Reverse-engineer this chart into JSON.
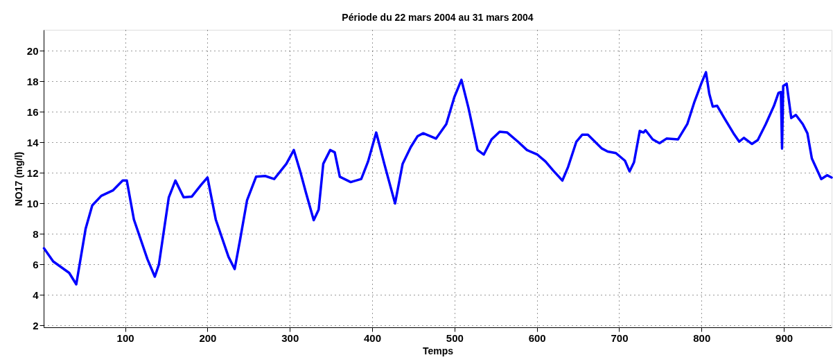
{
  "chart_data": {
    "type": "line",
    "title": "Période du 22 mars 2004 au 31 mars 2004",
    "xlabel": "Temps",
    "ylabel": "NO17 (mg/l)",
    "xlim": [
      1,
      958
    ],
    "ylim": [
      1.88,
      21.38
    ],
    "xticks": [
      100,
      200,
      300,
      400,
      500,
      600,
      700,
      800,
      900
    ],
    "yticks": [
      2,
      4,
      6,
      8,
      10,
      12,
      14,
      16,
      18,
      20
    ],
    "grid": true,
    "marker": "none",
    "line_style": "solid",
    "series": [
      {
        "color": "#0000ff",
        "x": [
          1.4,
          12.6,
          32,
          40.6,
          52,
          60,
          71,
          85,
          97,
          102,
          110.6,
          127,
          136,
          141,
          153,
          161,
          171,
          181,
          192,
          200,
          210,
          225.5,
          233,
          239.5,
          248,
          259,
          270,
          281,
          295.8,
          304.8,
          312.6,
          319.6,
          329,
          335,
          340.6,
          349,
          354.5,
          360.7,
          374,
          386.7,
          395,
          404.9,
          414.7,
          427.8,
          437,
          446.9,
          455,
          462,
          477.6,
          490,
          500,
          508.4,
          517,
          528,
          535.5,
          545,
          554.8,
          564,
          577,
          588,
          600.7,
          610.5,
          620,
          631,
          638,
          648,
          655,
          662,
          679,
          686,
          696,
          707,
          712.6,
          718,
          725,
          729.5,
          732,
          740.7,
          749,
          757.5,
          771.5,
          782.7,
          791,
          800,
          805.4,
          809.4,
          813.6,
          819,
          827.6,
          838.8,
          845.8,
          851.4,
          861.3,
          868.3,
          878,
          888,
          893.5,
          896.4,
          897.8,
          899.2,
          903.4,
          909,
          914.6,
          923,
          928.6,
          934,
          945.4,
          952.5,
          958
        ],
        "values": [
          7.06,
          6.2,
          5.45,
          4.7,
          8.35,
          9.87,
          10.5,
          10.85,
          11.5,
          11.5,
          8.95,
          6.35,
          5.2,
          6.0,
          10.4,
          11.5,
          10.4,
          10.45,
          11.2,
          11.7,
          8.95,
          6.5,
          5.7,
          7.6,
          10.2,
          11.75,
          11.8,
          11.6,
          12.6,
          13.5,
          12.1,
          10.7,
          8.9,
          9.6,
          12.6,
          13.5,
          13.35,
          11.75,
          11.4,
          11.6,
          12.75,
          14.65,
          12.6,
          10.0,
          12.6,
          13.7,
          14.4,
          14.6,
          14.25,
          15.2,
          17.0,
          18.1,
          16.25,
          13.5,
          13.2,
          14.2,
          14.7,
          14.65,
          14.05,
          13.5,
          13.2,
          12.75,
          12.15,
          11.5,
          12.4,
          14.05,
          14.5,
          14.5,
          13.6,
          13.4,
          13.3,
          12.8,
          12.1,
          12.7,
          14.75,
          14.65,
          14.8,
          14.2,
          13.95,
          14.25,
          14.2,
          15.2,
          16.6,
          17.9,
          18.6,
          17.2,
          16.35,
          16.4,
          15.6,
          14.6,
          14.05,
          14.3,
          13.9,
          14.15,
          15.2,
          16.4,
          17.25,
          17.3,
          13.6,
          17.7,
          17.85,
          15.6,
          15.8,
          15.2,
          14.6,
          12.95,
          11.6,
          11.85,
          11.7
        ]
      }
    ]
  }
}
